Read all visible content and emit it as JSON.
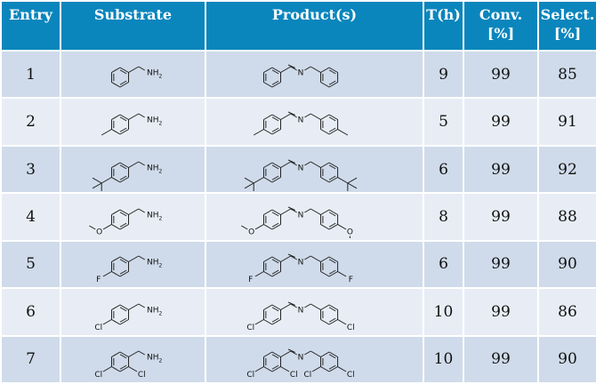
{
  "headers": {
    "entry": "Entry",
    "substrate": "Substrate",
    "product": "Product(s)",
    "time": "T(h)",
    "conv": "Conv. [%]",
    "select": "Select. [%]"
  },
  "colors": {
    "header": "#0a86bd",
    "row_odd": "#cfdbea",
    "row_even": "#e8edf5"
  },
  "atom_labels": {
    "amine": "NH",
    "amine_sub": "2",
    "imine_n": "N",
    "F": "F",
    "Cl": "Cl",
    "O": "O"
  },
  "rows": [
    {
      "entry": "1",
      "para": null,
      "ortho": false,
      "time": "9",
      "conv": "99",
      "select": "85"
    },
    {
      "entry": "2",
      "para": "methyl",
      "ortho": false,
      "time": "5",
      "conv": "99",
      "select": "91"
    },
    {
      "entry": "3",
      "para": "tert-butyl",
      "ortho": false,
      "time": "6",
      "conv": "99",
      "select": "92"
    },
    {
      "entry": "4",
      "para": "methoxy",
      "ortho": false,
      "time": "8",
      "conv": "99",
      "select": "88"
    },
    {
      "entry": "5",
      "para": "F",
      "ortho": false,
      "time": "6",
      "conv": "99",
      "select": "90"
    },
    {
      "entry": "6",
      "para": "Cl",
      "ortho": false,
      "time": "10",
      "conv": "99",
      "select": "86"
    },
    {
      "entry": "7",
      "para": "Cl",
      "ortho": true,
      "time": "10",
      "conv": "99",
      "select": "90"
    }
  ]
}
